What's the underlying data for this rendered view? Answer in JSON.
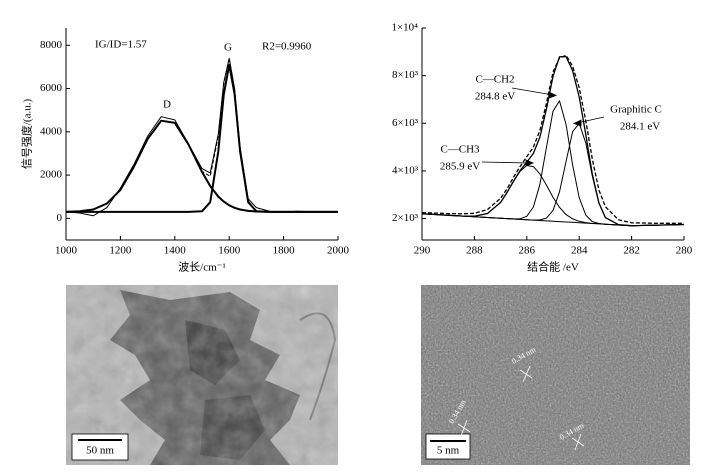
{
  "chart_data": [
    {
      "type": "line",
      "x_label": "波长/cm⁻¹",
      "y_label": "信号强度/(a.u.)",
      "annotations": [
        "IG/ID=1.57",
        "R2=0.9960",
        "D",
        "G"
      ],
      "x": [
        1000,
        1050,
        1100,
        1150,
        1200,
        1250,
        1300,
        1350,
        1400,
        1450,
        1500,
        1530,
        1560,
        1580,
        1600,
        1620,
        1640,
        1670,
        1700,
        1750,
        1800,
        1850,
        1900,
        1950,
        2000
      ],
      "series": [
        {
          "color": "#000000",
          "style": "solid",
          "width": 1,
          "values": [
            300,
            250,
            120,
            500,
            1400,
            2500,
            3800,
            4700,
            4550,
            3450,
            2300,
            2100,
            3900,
            6300,
            7400,
            6000,
            3300,
            900,
            500,
            320,
            300,
            330,
            300,
            310,
            300
          ]
        },
        {
          "color": "#000000",
          "style": "dashed",
          "width": 1,
          "values": [
            300,
            326,
            412,
            683,
            1314,
            2394,
            3667,
            4514,
            4411,
            3422,
            2173,
            1944,
            3797,
            6214,
            7405,
            5929,
            3202,
            796,
            344,
            300,
            300,
            300,
            300,
            300,
            300
          ]
        },
        {
          "color": "#000000",
          "style": "solid",
          "width": 2,
          "values": [
            300,
            326,
            412,
            683,
            1314,
            2394,
            3667,
            4514,
            4411,
            3422,
            2146,
            1495,
            1007,
            774,
            605,
            489,
            412,
            347,
            317,
            300,
            300,
            300,
            300,
            300,
            300
          ]
        },
        {
          "color": "#000000",
          "style": "solid",
          "width": 2,
          "values": [
            300,
            300,
            300,
            300,
            300,
            300,
            300,
            300,
            300,
            300,
            327,
            749,
            3090,
            5740,
            7100,
            5740,
            3090,
            749,
            327,
            300,
            300,
            300,
            300,
            300,
            300
          ]
        }
      ],
      "xlim": [
        1000,
        2000
      ],
      "xticks": [
        1000,
        1200,
        1400,
        1600,
        1800,
        2000
      ],
      "ylim": [
        -1000,
        8800
      ],
      "yticks": [
        0,
        2000,
        4000,
        6000,
        8000
      ]
    },
    {
      "type": "line",
      "x_label": "结合能 /eV",
      "annotations": [
        "C—CH2",
        "284.8 eV",
        "Graphitic C",
        "284.1 eV",
        "C—CH3",
        "285.9 eV"
      ],
      "x": [
        290,
        289.5,
        289,
        288.5,
        288,
        287.5,
        287,
        286.75,
        286.5,
        286.25,
        286,
        285.75,
        285.5,
        285.25,
        285,
        284.75,
        284.5,
        284.25,
        284,
        283.75,
        283.5,
        283.25,
        283,
        282.5,
        282,
        281,
        280
      ],
      "series": [
        {
          "color": "#000000",
          "style": "solid",
          "width": 1,
          "values": [
            2200,
            2169,
            2138,
            2106,
            2075,
            2044,
            2013,
            1997,
            1981,
            1966,
            1950,
            1934,
            1919,
            1903,
            1888,
            1872,
            1856,
            1841,
            1825,
            1809,
            1794,
            1778,
            1763,
            1731,
            1700,
            1725,
            1750
          ]
        },
        {
          "color": "#000000",
          "style": "solid",
          "width": 1,
          "values": [
            2200,
            2169,
            2138,
            2108,
            2100,
            2213,
            2680,
            3097,
            3575,
            3996,
            4227,
            4181,
            3874,
            3398,
            2894,
            2468,
            2167,
            1984,
            1883,
            1830,
            1794,
            1778,
            1763,
            1731,
            1700,
            1725,
            1750
          ]
        },
        {
          "color": "#000000",
          "style": "solid",
          "width": 1,
          "values": [
            2200,
            2169,
            2138,
            2106,
            2075,
            2044,
            2013,
            1997,
            1985,
            1994,
            2093,
            2485,
            3439,
            4998,
            6509,
            6941,
            5941,
            4258,
            2876,
            2146,
            1871,
            1792,
            1763,
            1731,
            1700,
            1725,
            1750
          ]
        },
        {
          "color": "#000000",
          "style": "solid",
          "width": 1,
          "values": [
            2200,
            2169,
            2138,
            2106,
            2075,
            2044,
            2013,
            1997,
            1981,
            1966,
            1950,
            1937,
            1943,
            2021,
            2342,
            3124,
            4405,
            5646,
            6000,
            5173,
            3785,
            2643,
            2040,
            1742,
            1700,
            1725,
            1750
          ]
        },
        {
          "color": "#000000",
          "style": "solid",
          "width": 1.3,
          "values": [
            2200,
            2169,
            2138,
            2108,
            2100,
            2213,
            2680,
            3097,
            3579,
            4024,
            4370,
            4735,
            5418,
            6611,
            7969,
            8789,
            8801,
            8206,
            7109,
            5531,
            3862,
            2657,
            2040,
            1742,
            1700,
            1725,
            1750
          ]
        },
        {
          "color": "#000000",
          "style": "dashed",
          "width": 1.3,
          "values": [
            2250,
            2230,
            2210,
            2200,
            2220,
            2380,
            2850,
            3250,
            3750,
            4200,
            4600,
            5000,
            5700,
            6850,
            8150,
            8750,
            8850,
            8400,
            7500,
            6100,
            4500,
            3200,
            2500,
            1950,
            1820,
            1800,
            1800
          ]
        }
      ],
      "xlim": [
        290,
        280
      ],
      "xticks": [
        290,
        288,
        286,
        284,
        282,
        280
      ],
      "ylim": [
        1100,
        10000
      ],
      "yticks": [
        {
          "value": 2000,
          "label": "2×10³"
        },
        {
          "value": 4000,
          "label": "4×10³"
        },
        {
          "value": 6000,
          "label": "6×10³"
        },
        {
          "value": 8000,
          "label": "8×10³"
        },
        {
          "value": 10000,
          "label": "1×10⁴"
        }
      ]
    }
  ],
  "images": [
    {
      "scale_bar": "50 nm"
    },
    {
      "scale_bar": "5 nm",
      "annotations": [
        "0.34 nm",
        "0.34 nm",
        "0.34 nm"
      ]
    }
  ]
}
